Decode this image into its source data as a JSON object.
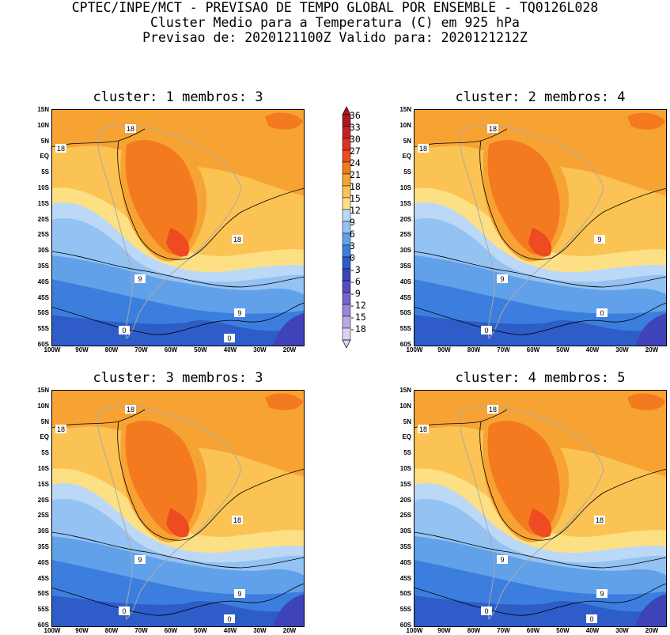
{
  "header": {
    "line1": "CPTEC/INPE/MCT - PREVISAO DE TEMPO GLOBAL POR ENSEMBLE - TQ0126L028",
    "line2": "Cluster Medio para a Temperatura (C) em 925 hPa",
    "line3": "Previsao de: 2020121100Z   Valido para: 2020121212Z"
  },
  "panels": [
    {
      "title": "cluster: 1  membros: 3",
      "contour_labels": [
        "18",
        "18",
        "18",
        "9",
        "9",
        "0",
        "0"
      ]
    },
    {
      "title": "cluster: 2  membros: 4",
      "contour_labels": [
        "18",
        "18",
        "9",
        "9",
        "0",
        "0"
      ]
    },
    {
      "title": "cluster: 3  membros: 3",
      "contour_labels": [
        "18",
        "18",
        "18",
        "9",
        "9",
        "0",
        "0"
      ]
    },
    {
      "title": "cluster: 4  membros: 5",
      "contour_labels": [
        "18",
        "18",
        "18",
        "9",
        "9",
        "0",
        "0"
      ]
    }
  ],
  "lat_ticks": [
    "15N",
    "10N",
    "5N",
    "EQ",
    "5S",
    "10S",
    "15S",
    "20S",
    "25S",
    "30S",
    "35S",
    "40S",
    "45S",
    "50S",
    "55S",
    "60S"
  ],
  "lon_ticks": [
    "100W",
    "90W",
    "80W",
    "70W",
    "60W",
    "50W",
    "40W",
    "30W",
    "20W"
  ],
  "colorbar": {
    "levels": [
      "36",
      "33",
      "30",
      "27",
      "24",
      "21",
      "18",
      "15",
      "12",
      "9",
      "6",
      "3",
      "0",
      "-3",
      "-6",
      "-9",
      "-12",
      "-15",
      "-18"
    ],
    "colors": [
      "#a8181c",
      "#c32026",
      "#dd3326",
      "#ee4b22",
      "#f47a1f",
      "#f7a334",
      "#fbc354",
      "#fde083",
      "#bcd8f7",
      "#94c2f3",
      "#61a1e9",
      "#3c7ede",
      "#2e5cc8",
      "#3e43b8",
      "#5a4ac0",
      "#7964cc",
      "#9a86da",
      "#bcaae7",
      "#ddd0f4"
    ]
  }
}
